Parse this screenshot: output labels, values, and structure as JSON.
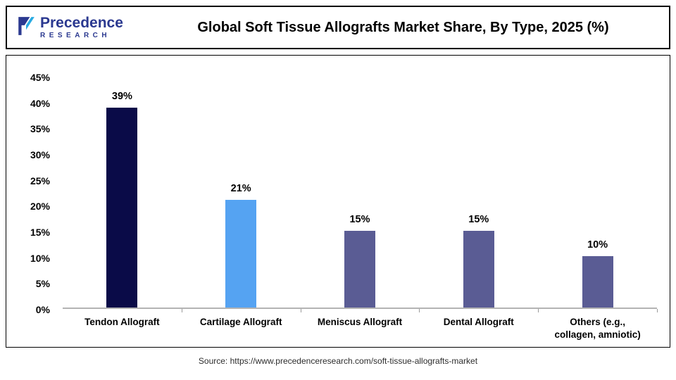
{
  "logo": {
    "line1": "Precedence",
    "line2": "RESEARCH"
  },
  "chart_data": {
    "type": "bar",
    "title": "Global Soft Tissue Allografts Market Share, By Type, 2025 (%)",
    "categories": [
      "Tendon Allograft",
      "Cartilage Allograft",
      "Meniscus Allograft",
      "Dental Allograft",
      "Others (e.g., collagen, amniotic)"
    ],
    "values": [
      39,
      21,
      15,
      15,
      10
    ],
    "value_labels": [
      "39%",
      "21%",
      "15%",
      "15%",
      "10%"
    ],
    "bar_colors": [
      "#0a0b48",
      "#55a3f2",
      "#5a5c94",
      "#5a5c94",
      "#5a5c94"
    ],
    "xlabel": "",
    "ylabel": "",
    "ylim": [
      0,
      45
    ],
    "ytick_step": 5,
    "ytick_labels": [
      "0%",
      "5%",
      "10%",
      "15%",
      "20%",
      "25%",
      "30%",
      "35%",
      "40%",
      "45%"
    ],
    "grid": false,
    "legend": false,
    "colors": {
      "accent_dark_navy": "#0a0b48",
      "accent_light_blue": "#55a3f2",
      "accent_slate": "#5a5c94",
      "logo_blue": "#2b3990",
      "logo_light_blue": "#29abe2"
    }
  },
  "footer": {
    "source": "Source: https://www.precedenceresearch.com/soft-tissue-allografts-market"
  }
}
